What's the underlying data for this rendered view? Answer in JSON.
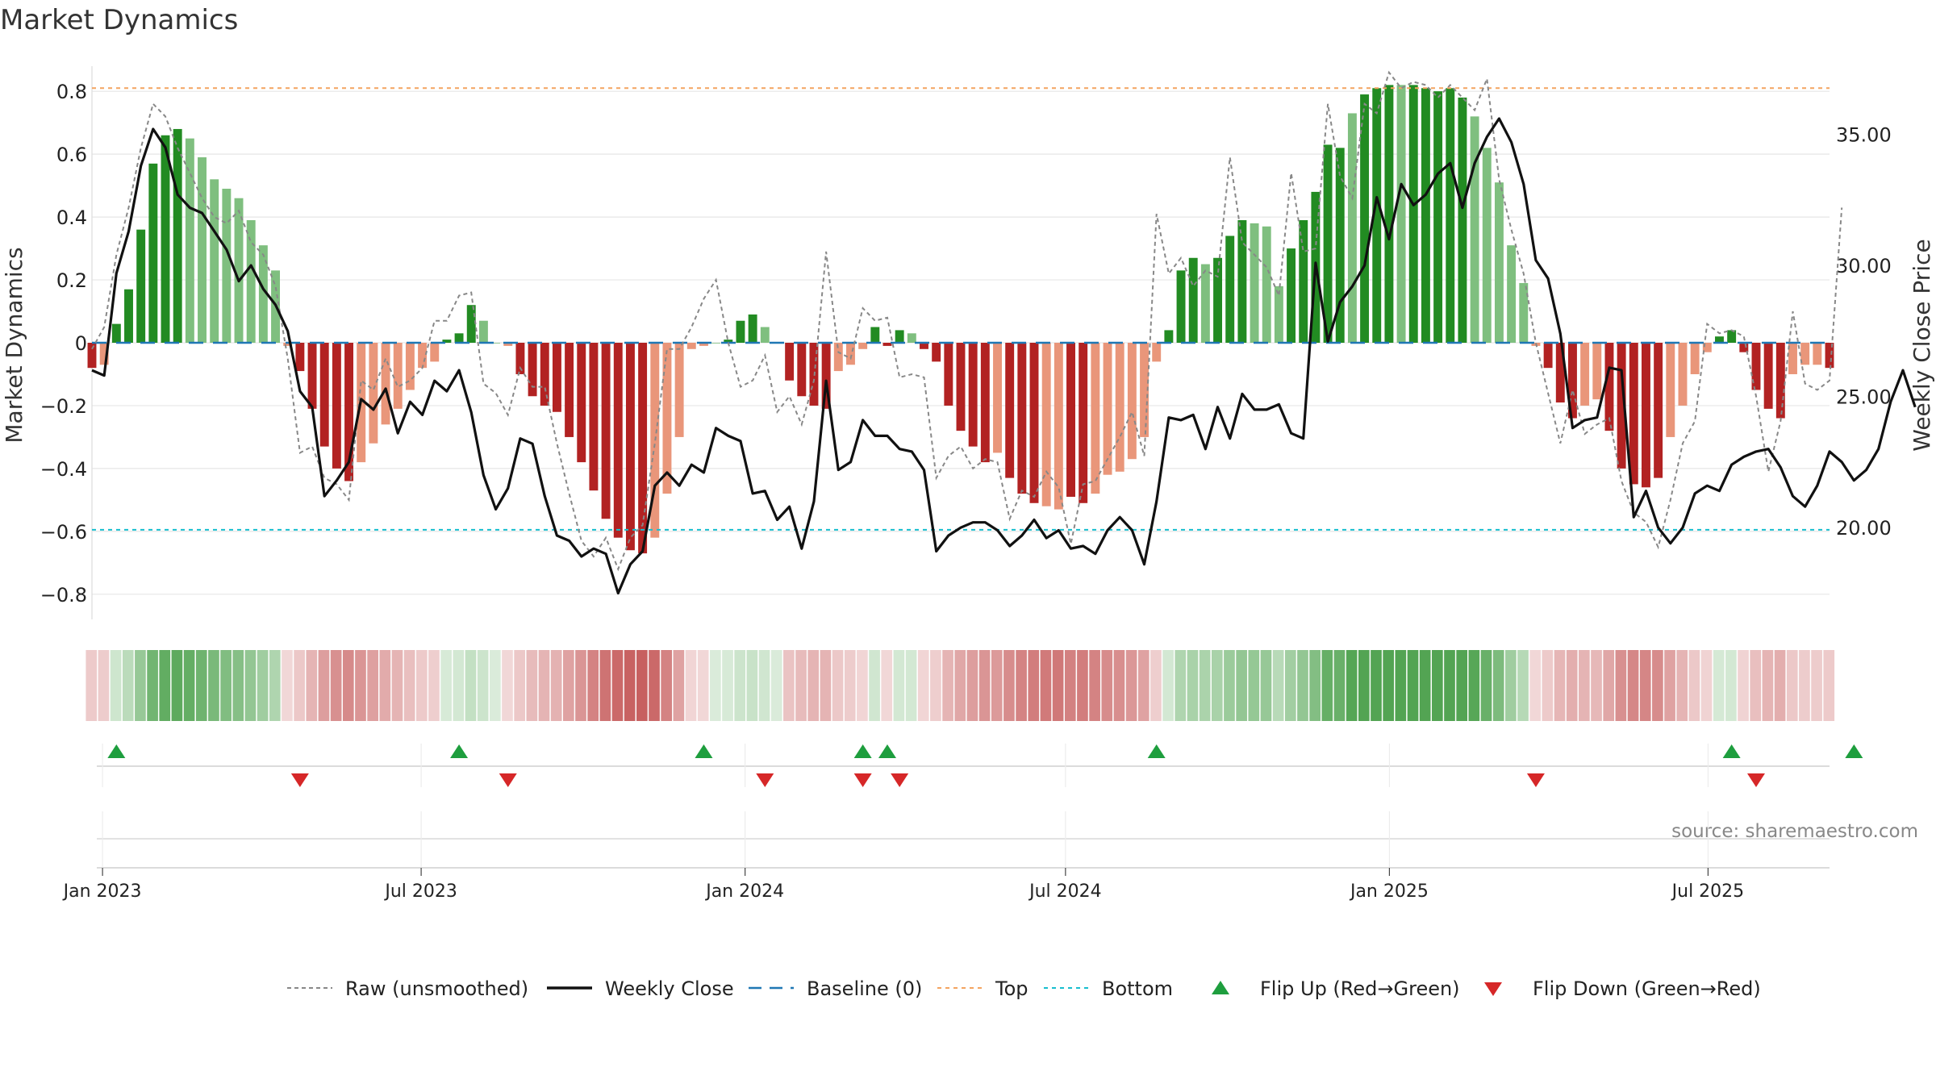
{
  "title": "Market Dynamics",
  "source_note": "source: sharemaestro.com",
  "colors": {
    "green_strong": "#228b22",
    "green_light": "#7fbf7f",
    "red_strong": "#b22222",
    "red_light": "#e9967a",
    "close_line": "#111111",
    "raw_line": "#888888",
    "baseline": "#1f77b4",
    "top": "#f4a460",
    "bottom": "#17becf",
    "flip_up": "#1e9e3e",
    "flip_down": "#d62728"
  },
  "chart_data": [
    {
      "type": "bar",
      "name": "dynamics_panel",
      "ylabel": "Market Dynamics",
      "y2label": "Weekly Close Price",
      "ylim": [
        -0.88,
        0.88
      ],
      "y2lim": [
        16.5,
        37.6
      ],
      "yticks": [
        "0.8",
        "0.6",
        "0.4",
        "0.2",
        "0",
        "−0.2",
        "−0.4",
        "−0.6",
        "−0.8"
      ],
      "ytick_values": [
        0.8,
        0.6,
        0.4,
        0.2,
        0,
        -0.2,
        -0.4,
        -0.6,
        -0.8
      ],
      "y2ticks": [
        "35.00",
        "30.00",
        "25.00",
        "20.00"
      ],
      "y2tick_values": [
        35,
        30,
        25,
        20
      ],
      "top_level": 0.81,
      "bottom_level": -0.595,
      "baseline_level": 0,
      "x_start": "2022-12-26",
      "x_end": "2025-09-08",
      "xticks": [
        "Jan 2023",
        "Jul 2023",
        "Jan 2024",
        "Jul 2024",
        "Jan 2025",
        "Jul 2025"
      ],
      "xtick_dates": [
        "2023-01-01",
        "2023-07-01",
        "2024-01-01",
        "2024-07-01",
        "2025-01-01",
        "2025-07-01"
      ],
      "grid": true,
      "legend_position": "bottom",
      "legend": [
        "Raw (unsmoothed)",
        "Weekly Close",
        "Baseline (0)",
        "Top",
        "Bottom",
        "Flip Up (Red→Green)",
        "Flip Down (Green→Red)"
      ],
      "bar_values": [
        -0.08,
        -0.07,
        0.06,
        0.17,
        0.36,
        0.57,
        0.66,
        0.68,
        0.65,
        0.59,
        0.52,
        0.49,
        0.46,
        0.39,
        0.31,
        0.23,
        -0.01,
        -0.09,
        -0.21,
        -0.33,
        -0.4,
        -0.44,
        -0.38,
        -0.32,
        -0.26,
        -0.21,
        -0.15,
        -0.08,
        -0.06,
        0.01,
        0.03,
        0.12,
        0.07,
        0.0,
        -0.01,
        -0.1,
        -0.17,
        -0.2,
        -0.22,
        -0.3,
        -0.38,
        -0.47,
        -0.56,
        -0.62,
        -0.66,
        -0.67,
        -0.62,
        -0.48,
        -0.3,
        -0.02,
        -0.01,
        0.0,
        0.01,
        0.07,
        0.09,
        0.05,
        0.0,
        -0.12,
        -0.17,
        -0.2,
        -0.21,
        -0.09,
        -0.07,
        -0.02,
        0.05,
        -0.01,
        0.04,
        0.03,
        -0.02,
        -0.06,
        -0.2,
        -0.28,
        -0.33,
        -0.38,
        -0.35,
        -0.43,
        -0.48,
        -0.51,
        -0.52,
        -0.53,
        -0.49,
        -0.51,
        -0.48,
        -0.42,
        -0.41,
        -0.37,
        -0.3,
        -0.06,
        0.04,
        0.23,
        0.27,
        0.25,
        0.27,
        0.34,
        0.39,
        0.38,
        0.37,
        0.18,
        0.3,
        0.39,
        0.48,
        0.63,
        0.62,
        0.73,
        0.79,
        0.81,
        0.82,
        0.82,
        0.82,
        0.81,
        0.8,
        0.81,
        0.78,
        0.72,
        0.62,
        0.51,
        0.31,
        0.19,
        -0.01,
        -0.08,
        -0.19,
        -0.24,
        -0.2,
        -0.18,
        -0.28,
        -0.4,
        -0.45,
        -0.46,
        -0.43,
        -0.3,
        -0.2,
        -0.1,
        -0.03,
        0.02,
        0.04,
        -0.03,
        -0.15,
        -0.21,
        -0.24,
        -0.1,
        -0.07,
        -0.07,
        -0.08
      ],
      "bar_strong": [
        1,
        0,
        1,
        1,
        1,
        1,
        1,
        1,
        0,
        0,
        0,
        0,
        0,
        0,
        0,
        0,
        0,
        1,
        1,
        1,
        1,
        1,
        0,
        0,
        0,
        0,
        0,
        0,
        0,
        1,
        1,
        1,
        0,
        0,
        0,
        1,
        1,
        1,
        1,
        1,
        1,
        1,
        1,
        1,
        1,
        1,
        0,
        0,
        0,
        0,
        0,
        0,
        1,
        1,
        1,
        0,
        0,
        1,
        1,
        1,
        1,
        0,
        0,
        0,
        1,
        1,
        1,
        0,
        1,
        1,
        1,
        1,
        1,
        1,
        0,
        1,
        1,
        1,
        0,
        0,
        1,
        1,
        0,
        0,
        0,
        0,
        0,
        0,
        1,
        1,
        1,
        0,
        1,
        1,
        1,
        0,
        0,
        0,
        1,
        1,
        1,
        1,
        1,
        0,
        1,
        1,
        1,
        0,
        1,
        1,
        1,
        1,
        1,
        0,
        0,
        0,
        0,
        0,
        0,
        1,
        1,
        1,
        0,
        0,
        1,
        1,
        1,
        1,
        1,
        0,
        0,
        0,
        0,
        1,
        1,
        1,
        1,
        1,
        1,
        0,
        0,
        0,
        1
      ],
      "weekly_close": [
        26.0,
        25.8,
        29.7,
        31.3,
        33.8,
        35.2,
        34.5,
        32.7,
        32.2,
        32.0,
        31.3,
        30.6,
        29.4,
        30.0,
        29.1,
        28.5,
        27.5,
        25.2,
        24.6,
        21.2,
        21.8,
        22.5,
        24.9,
        24.5,
        25.3,
        23.6,
        24.8,
        24.3,
        25.6,
        25.2,
        26.0,
        24.4,
        22.0,
        20.7,
        21.5,
        23.4,
        23.2,
        21.2,
        19.7,
        19.5,
        18.9,
        19.2,
        19.0,
        17.5,
        18.6,
        19.1,
        21.6,
        22.1,
        21.6,
        22.4,
        22.1,
        23.8,
        23.5,
        23.3,
        21.3,
        21.4,
        20.3,
        20.8,
        19.2,
        21.0,
        25.6,
        22.2,
        22.5,
        24.1,
        23.5,
        23.5,
        23.0,
        22.9,
        22.2,
        19.1,
        19.7,
        20.0,
        20.2,
        20.2,
        19.9,
        19.3,
        19.7,
        20.3,
        19.6,
        19.9,
        19.2,
        19.3,
        19.0,
        19.9,
        20.4,
        19.9,
        18.6,
        21.0,
        24.2,
        24.1,
        24.3,
        23.0,
        24.6,
        23.4,
        25.1,
        24.5,
        24.5,
        24.7,
        23.6,
        23.4,
        30.1,
        27.1,
        28.6,
        29.2,
        30.0,
        32.6,
        31.0,
        33.1,
        32.3,
        32.7,
        33.5,
        33.9,
        32.2,
        33.9,
        34.9,
        35.6,
        34.7,
        33.1,
        30.2,
        29.5,
        27.4,
        23.8,
        24.1,
        24.2,
        26.1,
        26.0,
        20.4,
        21.4,
        20.0,
        19.4,
        20.0,
        21.3,
        21.6,
        21.4,
        22.4,
        22.7,
        22.9,
        23.0,
        22.3,
        21.2,
        20.8,
        21.6,
        22.9,
        22.5,
        21.8,
        22.2,
        23.0,
        24.8,
        26.0,
        24.6
      ],
      "raw_values": [
        -0.02,
        0.05,
        0.28,
        0.43,
        0.62,
        0.76,
        0.72,
        0.62,
        0.54,
        0.46,
        0.4,
        0.38,
        0.42,
        0.32,
        0.28,
        0.18,
        -0.05,
        -0.35,
        -0.33,
        -0.43,
        -0.45,
        -0.5,
        -0.12,
        -0.15,
        -0.05,
        -0.14,
        -0.12,
        -0.08,
        0.07,
        0.07,
        0.15,
        0.16,
        -0.13,
        -0.16,
        -0.23,
        -0.08,
        -0.14,
        -0.14,
        -0.32,
        -0.48,
        -0.63,
        -0.68,
        -0.62,
        -0.72,
        -0.62,
        -0.58,
        -0.32,
        -0.02,
        -0.02,
        0.05,
        0.14,
        0.2,
        0.0,
        -0.14,
        -0.12,
        -0.04,
        -0.22,
        -0.17,
        -0.26,
        -0.12,
        0.29,
        -0.03,
        -0.05,
        0.11,
        0.07,
        0.08,
        -0.11,
        -0.1,
        -0.11,
        -0.43,
        -0.36,
        -0.33,
        -0.4,
        -0.37,
        -0.38,
        -0.56,
        -0.47,
        -0.49,
        -0.41,
        -0.46,
        -0.64,
        -0.45,
        -0.44,
        -0.37,
        -0.3,
        -0.22,
        -0.36,
        0.41,
        0.22,
        0.27,
        0.18,
        0.23,
        0.21,
        0.59,
        0.32,
        0.28,
        0.24,
        0.15,
        0.54,
        0.29,
        0.3,
        0.76,
        0.53,
        0.46,
        0.76,
        0.73,
        0.86,
        0.81,
        0.83,
        0.82,
        0.78,
        0.82,
        0.78,
        0.74,
        0.84,
        0.52,
        0.36,
        0.22,
        0.0,
        -0.16,
        -0.32,
        -0.15,
        -0.29,
        -0.26,
        -0.24,
        -0.44,
        -0.54,
        -0.57,
        -0.65,
        -0.5,
        -0.32,
        -0.25,
        0.06,
        0.03,
        0.04,
        0.02,
        -0.17,
        -0.41,
        -0.25,
        0.1,
        -0.13,
        -0.15,
        -0.12,
        0.43
      ]
    },
    {
      "type": "heatmap",
      "name": "state_strip",
      "note": "one cell per week, color = bar sign and strength"
    },
    {
      "type": "scatter",
      "name": "flip_markers",
      "flip_up_weeks": [
        2,
        30,
        50,
        63,
        65,
        87,
        134,
        144
      ],
      "flip_down_weeks": [
        17,
        34,
        55,
        63,
        66,
        118,
        136
      ]
    }
  ]
}
